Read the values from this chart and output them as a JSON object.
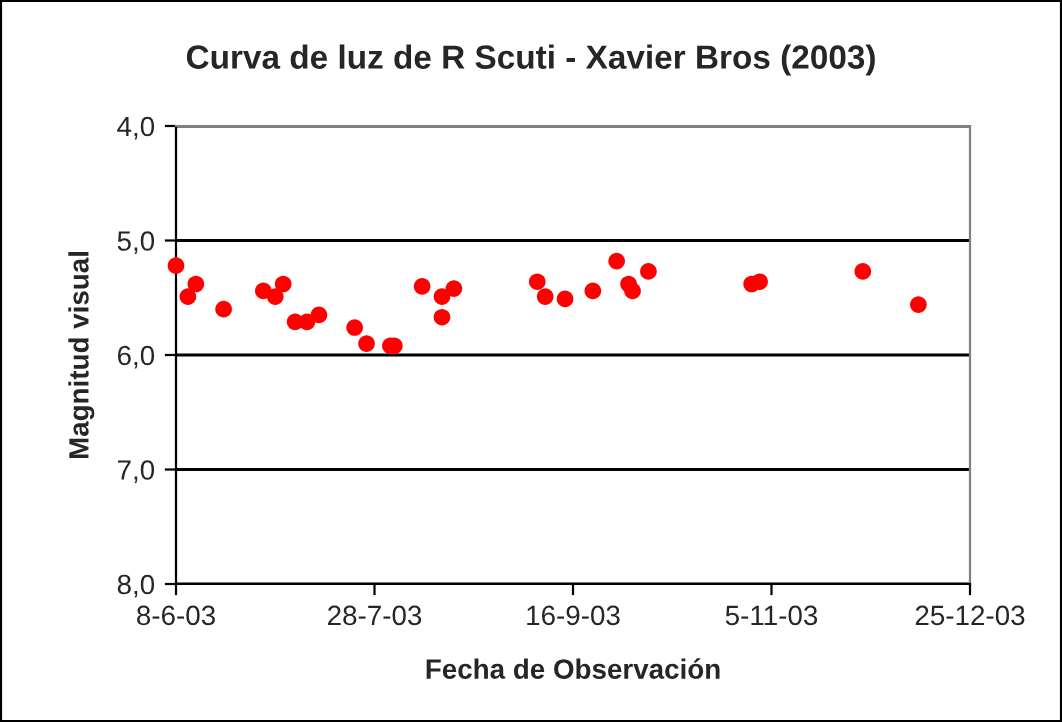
{
  "chart_data": {
    "type": "scatter",
    "title": "Curva de luz de R Scuti - Xavier Bros (2003)",
    "xlabel": "Fecha de Observación",
    "ylabel": "Magnitud visual",
    "series": [
      {
        "color": "#ff0000",
        "x": [
          "2003-06-08",
          "2003-06-11",
          "2003-06-13",
          "2003-06-20",
          "2003-06-30",
          "2003-07-03",
          "2003-07-05",
          "2003-07-08",
          "2003-07-11",
          "2003-07-14",
          "2003-07-23",
          "2003-07-26",
          "2003-08-01",
          "2003-08-02",
          "2003-08-09",
          "2003-08-14",
          "2003-08-14",
          "2003-08-17",
          "2003-09-07",
          "2003-09-09",
          "2003-09-14",
          "2003-09-21",
          "2003-09-27",
          "2003-09-30",
          "2003-10-01",
          "2003-10-05",
          "2003-10-31",
          "2003-11-02",
          "2003-11-28",
          "2003-12-12"
        ],
        "values": [
          5.22,
          5.49,
          5.38,
          5.6,
          5.44,
          5.49,
          5.38,
          5.71,
          5.71,
          5.65,
          5.76,
          5.9,
          5.92,
          5.92,
          5.4,
          5.49,
          5.67,
          5.42,
          5.36,
          5.49,
          5.51,
          5.44,
          5.18,
          5.38,
          5.44,
          5.27,
          5.38,
          5.36,
          5.27,
          5.56
        ]
      }
    ],
    "xlim": [
      "2003-06-08",
      "2003-12-25"
    ],
    "xticks": [
      {
        "value": "2003-06-08",
        "label": "8-6-03"
      },
      {
        "value": "2003-07-28",
        "label": "28-7-03"
      },
      {
        "value": "2003-09-16",
        "label": "16-9-03"
      },
      {
        "value": "2003-11-05",
        "label": "5-11-03"
      },
      {
        "value": "2003-12-25",
        "label": "25-12-03"
      }
    ],
    "ylim": [
      8.0,
      4.0
    ],
    "yticks": [
      {
        "value": 4.0,
        "label": "4,0"
      },
      {
        "value": 5.0,
        "label": "5,0"
      },
      {
        "value": 6.0,
        "label": "6,0"
      },
      {
        "value": 7.0,
        "label": "7,0"
      },
      {
        "value": 8.0,
        "label": "8,0"
      }
    ],
    "grid": "y",
    "marker": "circle",
    "legend": false
  }
}
